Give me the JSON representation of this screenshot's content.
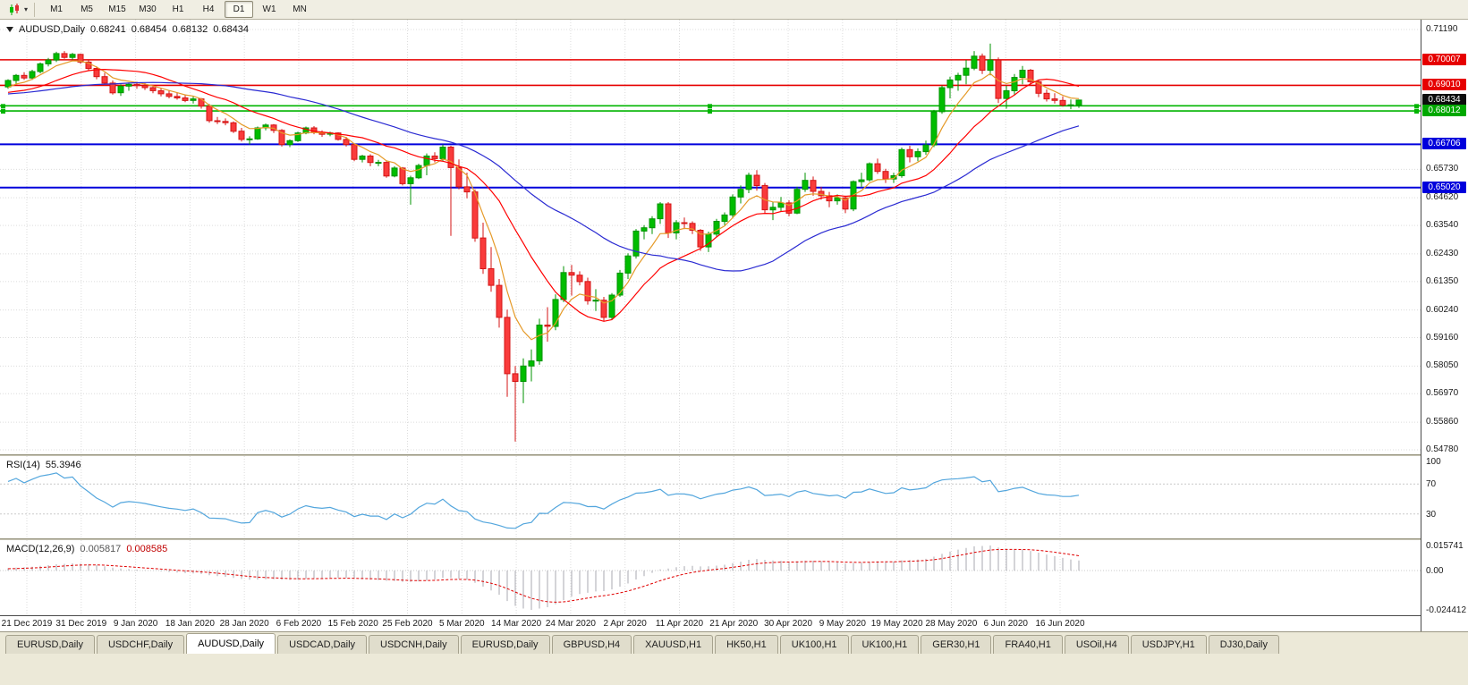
{
  "toolbar": {
    "timeframes": [
      "M1",
      "M5",
      "M15",
      "M30",
      "H1",
      "H4",
      "D1",
      "W1",
      "MN"
    ],
    "active_timeframe": "D1"
  },
  "chart": {
    "info": {
      "symbol": "AUDUSD,Daily",
      "open": "0.68241",
      "high": "0.68454",
      "low": "0.68132",
      "close": "0.68434"
    }
  },
  "indicators": {
    "rsi": {
      "name": "RSI(14)",
      "value": "55.3946",
      "color": "#53a6dd",
      "levels": [
        70,
        30
      ],
      "scale": [
        "100",
        "70",
        "30"
      ]
    },
    "macd": {
      "name": "MACD(12,26,9)",
      "main_value": "0.005817",
      "signal_value": "0.008585",
      "scale_max": "0.015741",
      "scale_zero": "0.00",
      "scale_min": "-0.024412",
      "histogram_color": "#a9a9b2",
      "signal_color": "#e00000"
    }
  },
  "tabs": {
    "active_index": 2,
    "items": [
      "EURUSD,Daily",
      "USDCHF,Daily",
      "AUDUSD,Daily",
      "USDCAD,Daily",
      "USDCNH,Daily",
      "EURUSD,Daily",
      "GBPUSD,H4",
      "XAUUSD,H1",
      "HK50,H1",
      "UK100,H1",
      "UK100,H1",
      "GER30,H1",
      "FRA40,H1",
      "USOil,H4",
      "USDJPY,H1",
      "DJ30,Daily"
    ],
    "note": "AUDUSD,Daily tab is active"
  },
  "chart_data": {
    "type": "candlestick",
    "symbol": "AUDUSD",
    "timeframe": "Daily",
    "current_bid": 0.68434,
    "colors": {
      "up": "#00bd00",
      "up_stroke": "#009300",
      "down": "#f93b3b",
      "down_stroke": "#d41414",
      "grid": "#dcdcdc"
    },
    "y_axis": {
      "max": 0.7119,
      "min": 0.5478,
      "plain_labels": [
        "0.71190",
        "0.65730",
        "0.64620",
        "0.63540",
        "0.62430",
        "0.61350",
        "0.60240",
        "0.59160",
        "0.58050",
        "0.56970",
        "0.55860",
        "0.54780"
      ]
    },
    "x_labels": [
      "21 Dec 2019",
      "31 Dec 2019",
      "9 Jan 2020",
      "18 Jan 2020",
      "28 Jan 2020",
      "6 Feb 2020",
      "15 Feb 2020",
      "25 Feb 2020",
      "5 Mar 2020",
      "14 Mar 2020",
      "24 Mar 2020",
      "2 Apr 2020",
      "11 Apr 2020",
      "21 Apr 2020",
      "30 Apr 2020",
      "9 May 2020",
      "19 May 2020",
      "28 May 2020",
      "6 Jun 2020",
      "16 Jun 2020"
    ],
    "horizontal_lines": [
      {
        "price": 0.70007,
        "color": "#e60000",
        "width": 1.6,
        "label": "0.70007",
        "label_bg": "#e60000"
      },
      {
        "price": 0.6901,
        "color": "#e60000",
        "width": 1.6,
        "label": "0.69010",
        "label_bg": "#e60000"
      },
      {
        "price": 0.68434,
        "color": null,
        "width": 0,
        "label": "0.68434",
        "label_bg": "#0d0d0d"
      },
      {
        "price": 0.6821,
        "color": "#00b400",
        "width": 1.6,
        "handles": true
      },
      {
        "price": 0.68012,
        "color": "#00b400",
        "width": 1.6,
        "handles": true,
        "label": "0.68012",
        "label_bg": "#00a800"
      },
      {
        "price": 0.66706,
        "color": "#0000dc",
        "width": 2,
        "label": "0.66706",
        "label_bg": "#0000dc"
      },
      {
        "price": 0.6502,
        "color": "#0000dc",
        "width": 2,
        "label": "0.65020",
        "label_bg": "#0000dc"
      }
    ],
    "moving_averages": [
      {
        "type": "ema",
        "period": 6,
        "color": "#e59a28"
      },
      {
        "type": "sma",
        "period": 14,
        "color": "#ff0000"
      },
      {
        "type": "sma",
        "period": 34,
        "color": "#2a2ad2"
      }
    ],
    "prehistory_closes": [
      0.676,
      0.6748,
      0.6735,
      0.6722,
      0.6715,
      0.6708,
      0.6712,
      0.6725,
      0.6738,
      0.675,
      0.6762,
      0.6775,
      0.6788,
      0.68,
      0.6812,
      0.682,
      0.6815,
      0.6808,
      0.6815,
      0.6825,
      0.6838,
      0.685,
      0.6858,
      0.6852,
      0.6845,
      0.6852,
      0.6862,
      0.6872,
      0.688,
      0.6885,
      0.6878,
      0.687,
      0.6862,
      0.6855,
      0.6848,
      0.6842,
      0.6848,
      0.6856,
      0.6864,
      0.6872,
      0.688,
      0.6888,
      0.6882,
      0.6875,
      0.6868,
      0.686,
      0.6852,
      0.6845,
      0.6852,
      0.686,
      0.6868,
      0.6876,
      0.6884,
      0.689,
      0.6896
    ],
    "candles": [
      [
        0.6895,
        0.6925,
        0.6888,
        0.692
      ],
      [
        0.692,
        0.6945,
        0.6905,
        0.694
      ],
      [
        0.694,
        0.6952,
        0.6922,
        0.693
      ],
      [
        0.693,
        0.6962,
        0.6922,
        0.6955
      ],
      [
        0.6955,
        0.699,
        0.6948,
        0.6985
      ],
      [
        0.6985,
        0.7008,
        0.6975,
        0.7
      ],
      [
        0.7,
        0.7032,
        0.6992,
        0.7025
      ],
      [
        0.7025,
        0.7035,
        0.7005,
        0.701
      ],
      [
        0.701,
        0.7028,
        0.7,
        0.7022
      ],
      [
        0.7022,
        0.7025,
        0.6985,
        0.6992
      ],
      [
        0.6992,
        0.7,
        0.696,
        0.6967
      ],
      [
        0.6967,
        0.6975,
        0.6925,
        0.6935
      ],
      [
        0.6935,
        0.695,
        0.69,
        0.691
      ],
      [
        0.691,
        0.692,
        0.6865,
        0.6872
      ],
      [
        0.6872,
        0.6905,
        0.686,
        0.6898
      ],
      [
        0.6898,
        0.6912,
        0.688,
        0.6905
      ],
      [
        0.6905,
        0.6915,
        0.6888,
        0.69
      ],
      [
        0.69,
        0.691,
        0.6883,
        0.6892
      ],
      [
        0.6892,
        0.6902,
        0.687,
        0.688
      ],
      [
        0.688,
        0.689,
        0.6858,
        0.6868
      ],
      [
        0.6868,
        0.688,
        0.685,
        0.6858
      ],
      [
        0.6858,
        0.6872,
        0.6845,
        0.6852
      ],
      [
        0.6852,
        0.6865,
        0.6835,
        0.6842
      ],
      [
        0.6842,
        0.6858,
        0.683,
        0.6848
      ],
      [
        0.6848,
        0.6852,
        0.681,
        0.682
      ],
      [
        0.682,
        0.6828,
        0.6755,
        0.6763
      ],
      [
        0.6763,
        0.6778,
        0.675,
        0.676
      ],
      [
        0.676,
        0.6772,
        0.6745,
        0.6755
      ],
      [
        0.6755,
        0.676,
        0.6715,
        0.6722
      ],
      [
        0.6722,
        0.6735,
        0.6682,
        0.669
      ],
      [
        0.669,
        0.6702,
        0.667,
        0.6692
      ],
      [
        0.6692,
        0.674,
        0.6688,
        0.6735
      ],
      [
        0.6735,
        0.6752,
        0.6725,
        0.6746
      ],
      [
        0.6746,
        0.675,
        0.6715,
        0.6725
      ],
      [
        0.6725,
        0.673,
        0.6662,
        0.667
      ],
      [
        0.667,
        0.669,
        0.666,
        0.6685
      ],
      [
        0.6685,
        0.672,
        0.668,
        0.6715
      ],
      [
        0.6715,
        0.674,
        0.671,
        0.6735
      ],
      [
        0.6735,
        0.6742,
        0.671,
        0.6718
      ],
      [
        0.6718,
        0.6725,
        0.67,
        0.671
      ],
      [
        0.671,
        0.672,
        0.6702,
        0.6715
      ],
      [
        0.6715,
        0.6718,
        0.6685,
        0.669
      ],
      [
        0.669,
        0.67,
        0.6662,
        0.667
      ],
      [
        0.667,
        0.6675,
        0.6605,
        0.6612
      ],
      [
        0.6612,
        0.663,
        0.66,
        0.6625
      ],
      [
        0.6625,
        0.6632,
        0.6585,
        0.66
      ],
      [
        0.66,
        0.661,
        0.6585,
        0.66
      ],
      [
        0.66,
        0.6605,
        0.654,
        0.6547
      ],
      [
        0.6547,
        0.6585,
        0.6542,
        0.6578
      ],
      [
        0.6578,
        0.6582,
        0.651,
        0.6517
      ],
      [
        0.6517,
        0.6548,
        0.6435,
        0.654
      ],
      [
        0.654,
        0.6595,
        0.6535,
        0.6588
      ],
      [
        0.6588,
        0.6635,
        0.655,
        0.6625
      ],
      [
        0.6625,
        0.664,
        0.66,
        0.6615
      ],
      [
        0.6615,
        0.667,
        0.6605,
        0.666
      ],
      [
        0.666,
        0.6665,
        0.6313,
        0.658
      ],
      [
        0.658,
        0.6612,
        0.6495,
        0.6505
      ],
      [
        0.6505,
        0.656,
        0.646,
        0.6485
      ],
      [
        0.6485,
        0.6495,
        0.629,
        0.6305
      ],
      [
        0.6305,
        0.6365,
        0.6165,
        0.6185
      ],
      [
        0.6185,
        0.627,
        0.6095,
        0.612
      ],
      [
        0.612,
        0.6145,
        0.5955,
        0.5995
      ],
      [
        0.5995,
        0.6025,
        0.5685,
        0.5775
      ],
      [
        0.5775,
        0.5805,
        0.551,
        0.5745
      ],
      [
        0.5745,
        0.5835,
        0.566,
        0.5805
      ],
      [
        0.5805,
        0.587,
        0.5745,
        0.5825
      ],
      [
        0.5825,
        0.599,
        0.581,
        0.5965
      ],
      [
        0.5965,
        0.6035,
        0.59,
        0.596
      ],
      [
        0.596,
        0.6085,
        0.5945,
        0.6065
      ],
      [
        0.6065,
        0.6195,
        0.6055,
        0.617
      ],
      [
        0.617,
        0.62,
        0.608,
        0.616
      ],
      [
        0.616,
        0.6175,
        0.612,
        0.6135
      ],
      [
        0.6135,
        0.615,
        0.6045,
        0.606
      ],
      [
        0.606,
        0.6105,
        0.602,
        0.6062
      ],
      [
        0.6062,
        0.6075,
        0.598,
        0.5995
      ],
      [
        0.5995,
        0.609,
        0.5985,
        0.6082
      ],
      [
        0.6082,
        0.618,
        0.6075,
        0.6168
      ],
      [
        0.6168,
        0.6245,
        0.6145,
        0.6235
      ],
      [
        0.6235,
        0.634,
        0.6225,
        0.6332
      ],
      [
        0.6332,
        0.6355,
        0.63,
        0.6345
      ],
      [
        0.6345,
        0.639,
        0.632,
        0.638
      ],
      [
        0.638,
        0.6445,
        0.636,
        0.6438
      ],
      [
        0.6438,
        0.6445,
        0.6305,
        0.6325
      ],
      [
        0.6325,
        0.6375,
        0.63,
        0.6365
      ],
      [
        0.6365,
        0.6385,
        0.634,
        0.6362
      ],
      [
        0.6362,
        0.637,
        0.632,
        0.6335
      ],
      [
        0.6335,
        0.634,
        0.6255,
        0.627
      ],
      [
        0.627,
        0.633,
        0.625,
        0.632
      ],
      [
        0.632,
        0.638,
        0.631,
        0.637
      ],
      [
        0.637,
        0.6405,
        0.6355,
        0.6395
      ],
      [
        0.6395,
        0.6475,
        0.6385,
        0.6465
      ],
      [
        0.6465,
        0.651,
        0.644,
        0.6495
      ],
      [
        0.6495,
        0.656,
        0.648,
        0.655
      ],
      [
        0.655,
        0.657,
        0.649,
        0.651
      ],
      [
        0.651,
        0.652,
        0.64,
        0.6415
      ],
      [
        0.6415,
        0.6445,
        0.6375,
        0.6425
      ],
      [
        0.6425,
        0.6465,
        0.641,
        0.6442
      ],
      [
        0.6442,
        0.6452,
        0.639,
        0.6402
      ],
      [
        0.6402,
        0.6505,
        0.6398,
        0.6495
      ],
      [
        0.6495,
        0.656,
        0.6485,
        0.653
      ],
      [
        0.653,
        0.6545,
        0.647,
        0.6487
      ],
      [
        0.6487,
        0.6505,
        0.6455,
        0.647
      ],
      [
        0.647,
        0.6485,
        0.6425,
        0.645
      ],
      [
        0.645,
        0.6475,
        0.6435,
        0.6462
      ],
      [
        0.6462,
        0.647,
        0.6402,
        0.6418
      ],
      [
        0.6418,
        0.653,
        0.641,
        0.6525
      ],
      [
        0.6525,
        0.656,
        0.6505,
        0.6532
      ],
      [
        0.6532,
        0.66,
        0.6525,
        0.6595
      ],
      [
        0.6595,
        0.6615,
        0.6555,
        0.6565
      ],
      [
        0.6565,
        0.6575,
        0.652,
        0.6535
      ],
      [
        0.6535,
        0.656,
        0.652,
        0.6548
      ],
      [
        0.6548,
        0.6658,
        0.654,
        0.665
      ],
      [
        0.665,
        0.6665,
        0.66,
        0.6622
      ],
      [
        0.6622,
        0.6655,
        0.6605,
        0.6642
      ],
      [
        0.6642,
        0.6685,
        0.663,
        0.6668
      ],
      [
        0.6668,
        0.6805,
        0.666,
        0.6798
      ],
      [
        0.6798,
        0.69,
        0.679,
        0.6892
      ],
      [
        0.6892,
        0.6935,
        0.685,
        0.6922
      ],
      [
        0.6922,
        0.695,
        0.688,
        0.694
      ],
      [
        0.694,
        0.7,
        0.6905,
        0.6968
      ],
      [
        0.6968,
        0.7035,
        0.696,
        0.7015
      ],
      [
        0.7015,
        0.7025,
        0.6945,
        0.696
      ],
      [
        0.696,
        0.7064,
        0.694,
        0.7
      ],
      [
        0.7,
        0.701,
        0.6832,
        0.685
      ],
      [
        0.685,
        0.69,
        0.681,
        0.688
      ],
      [
        0.688,
        0.6945,
        0.6865,
        0.6932
      ],
      [
        0.6932,
        0.6977,
        0.6905,
        0.696
      ],
      [
        0.696,
        0.6965,
        0.69,
        0.6915
      ],
      [
        0.6915,
        0.692,
        0.6855,
        0.687
      ],
      [
        0.687,
        0.6885,
        0.6838,
        0.6848
      ],
      [
        0.6848,
        0.687,
        0.683,
        0.6842
      ],
      [
        0.6842,
        0.6858,
        0.6818,
        0.6824
      ],
      [
        0.6824,
        0.6846,
        0.6808,
        0.6825
      ],
      [
        0.68241,
        0.68454,
        0.68132,
        0.68434
      ]
    ]
  }
}
